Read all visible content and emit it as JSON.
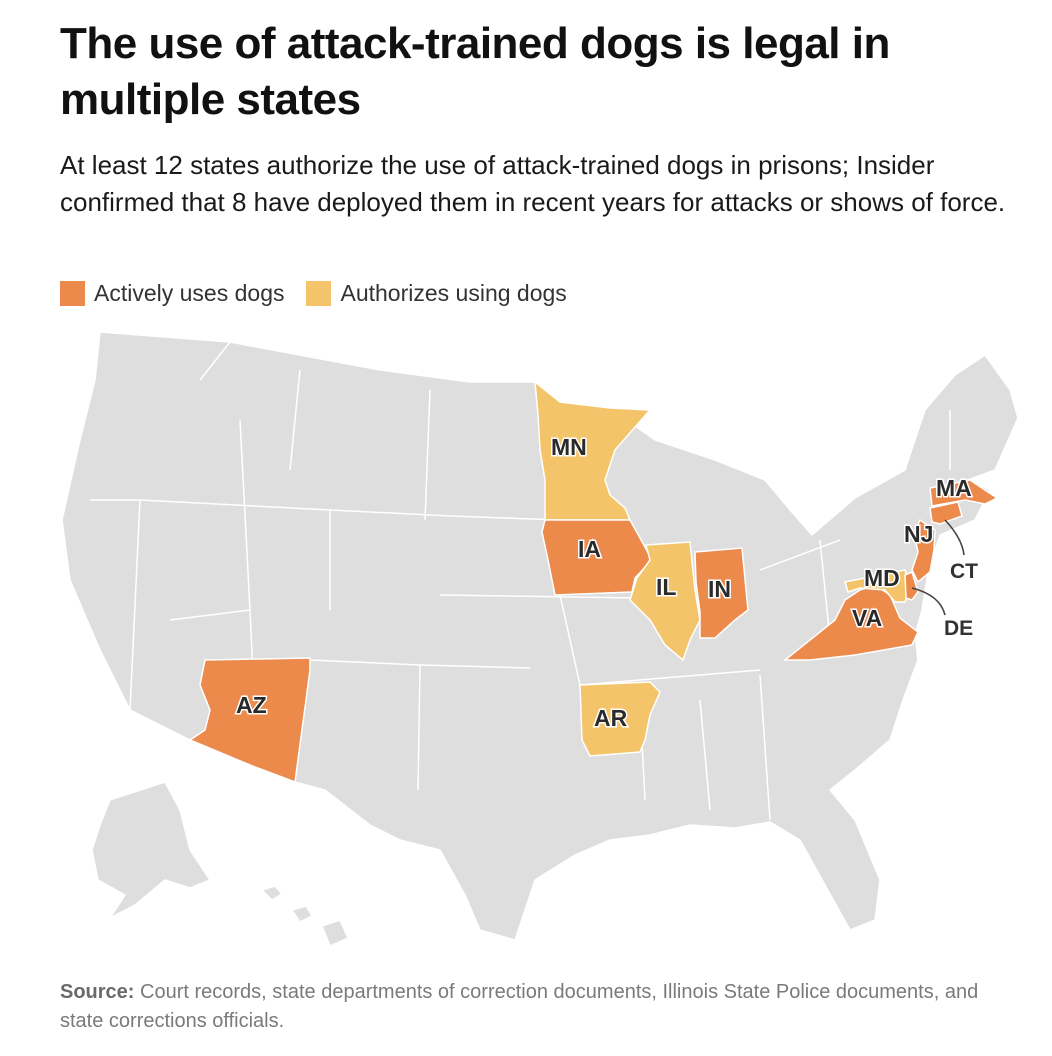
{
  "title": "The use of attack-trained dogs is legal in multiple states",
  "subtitle": "At least 12 states authorize the use of attack-trained dogs in prisons; Insider confirmed that 8 have deployed them in recent years for attacks or shows of force.",
  "legend": {
    "active": {
      "label": "Actively uses dogs",
      "color": "#ec8a4c"
    },
    "authorized": {
      "label": "Authorizes using dogs",
      "color": "#f4c46a"
    }
  },
  "colors": {
    "base": "#dedede",
    "border": "#ffffff",
    "leader": "#444444"
  },
  "map": {
    "states": [
      {
        "abbr": "AZ",
        "status": "active"
      },
      {
        "abbr": "IA",
        "status": "active"
      },
      {
        "abbr": "IN",
        "status": "active"
      },
      {
        "abbr": "VA",
        "status": "active"
      },
      {
        "abbr": "NJ",
        "status": "active"
      },
      {
        "abbr": "MA",
        "status": "active"
      },
      {
        "abbr": "CT",
        "status": "active"
      },
      {
        "abbr": "DE",
        "status": "active"
      },
      {
        "abbr": "MN",
        "status": "authorized"
      },
      {
        "abbr": "IL",
        "status": "authorized"
      },
      {
        "abbr": "AR",
        "status": "authorized"
      },
      {
        "abbr": "MD",
        "status": "authorized"
      }
    ],
    "labels": {
      "AZ": "AZ",
      "IA": "IA",
      "IN": "IN",
      "VA": "VA",
      "NJ": "NJ",
      "MA": "MA",
      "MN": "MN",
      "IL": "IL",
      "AR": "AR",
      "MD": "MD",
      "CT": "CT",
      "DE": "DE"
    }
  },
  "source": {
    "label": "Source:",
    "text": " Court records, state departments of correction documents, Illinois State Police documents, and state corrections officials."
  }
}
